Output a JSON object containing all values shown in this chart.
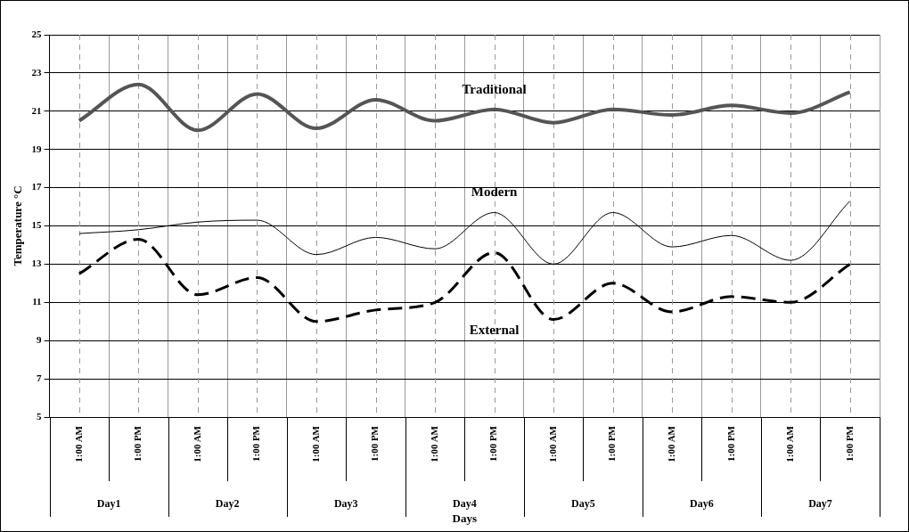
{
  "chart_data": {
    "type": "line",
    "xlabel": "Days",
    "ylabel": "Temperature °C",
    "categories": [
      "1:00 AM",
      "1:00 PM",
      "1:00 AM",
      "1:00 PM",
      "1:00 AM",
      "1:00 PM",
      "1:00 AM",
      "1:00 PM",
      "1:00 AM",
      "1:00 PM",
      "1:00 AM",
      "1:00 PM",
      "1:00 AM",
      "1:00 PM"
    ],
    "series": [
      {
        "name": "Traditional",
        "color": "#555555",
        "line_style": "solid",
        "values": [
          20.5,
          22.4,
          20.0,
          21.9,
          20.1,
          21.6,
          20.5,
          21.1,
          20.4,
          21.1,
          20.8,
          21.3,
          20.9,
          22.0
        ]
      },
      {
        "name": "Modern",
        "color": "#000000",
        "line_style": "solid",
        "values": [
          14.6,
          14.8,
          15.2,
          15.3,
          13.5,
          14.4,
          13.8,
          15.7,
          13.0,
          15.7,
          13.9,
          14.5,
          13.2,
          16.3
        ]
      },
      {
        "name": "External",
        "color": "#000000",
        "line_style": "dashed",
        "values": [
          12.5,
          14.3,
          11.4,
          12.3,
          10.0,
          10.6,
          11.0,
          13.6,
          10.1,
          12.0,
          10.5,
          11.3,
          11.0,
          13.0
        ]
      }
    ],
    "annotations": [
      "Day1",
      "Day2",
      "Day3",
      "Day4",
      "Day5",
      "Day6",
      "Day7"
    ],
    "ylim": [
      5,
      25
    ],
    "yticks": [
      5,
      7,
      9,
      11,
      13,
      15,
      17,
      19,
      21,
      23,
      25
    ],
    "grid": true,
    "legend": false,
    "marker": "none"
  }
}
